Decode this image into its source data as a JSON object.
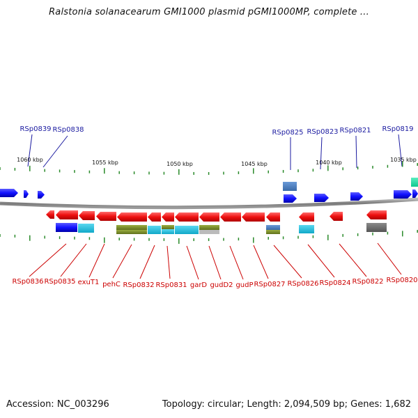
{
  "title": "Ralstonia solanacearum GMI1000 plasmid pGMI1000MP, complete ...",
  "footer": {
    "accession": "Accession: NC_003296",
    "stats": "Topology: circular; Length: 2,094,509 bp; Genes: 1,682"
  },
  "colors": {
    "forward_gene": "#1a1aff",
    "reverse_gene": "#ee1111",
    "top_label": "#1a1aa0",
    "bottom_label": "#cc0000",
    "backbone": "#8a8a8a",
    "tick": "#2a8a2a"
  },
  "ruler": [
    {
      "label": "1060 kbp"
    },
    {
      "label": "1055 kbp"
    },
    {
      "label": "1050 kbp"
    },
    {
      "label": "1045 kbp"
    },
    {
      "label": "1040 kbp"
    },
    {
      "label": "1035 kbp"
    }
  ],
  "top_labels": [
    "RSp0839",
    "RSp0838",
    "RSp0825",
    "RSp0823",
    "RSp0821",
    "RSp0819"
  ],
  "bottom_labels": [
    "RSp0836",
    "RSp0835",
    "exuT1",
    "pehC",
    "RSp0832",
    "RSp0831",
    "garD",
    "gudD2",
    "gudP",
    "RSp0827",
    "RSp0826",
    "RSp0824",
    "RSp0822",
    "RSp0820"
  ]
}
